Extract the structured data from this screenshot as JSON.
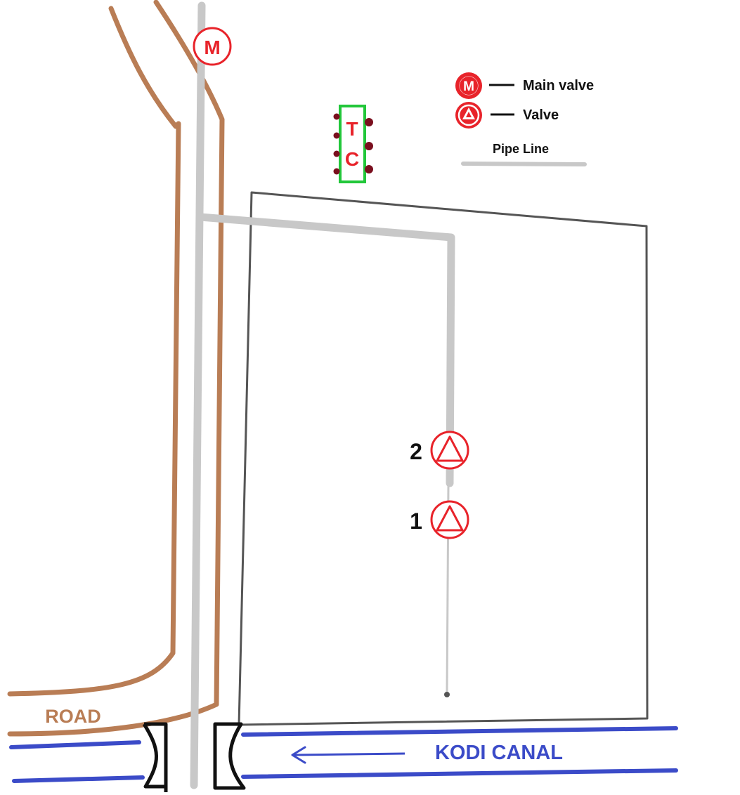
{
  "main_valve": {
    "letter": "M"
  },
  "tc_unit": {
    "top_letter": "T",
    "bottom_letter": "C"
  },
  "legend": {
    "main_valve_letter": "M",
    "main_valve_label": "Main valve",
    "valve_label": "Valve",
    "pipe_line_label": "Pipe Line"
  },
  "valves": [
    {
      "number": "2"
    },
    {
      "number": "1"
    }
  ],
  "road_label": "ROAD",
  "canal_label": "KODI CANAL",
  "colors": {
    "road": "#b97d55",
    "pipe": "#c8c8c8",
    "valve": "#e8232a",
    "canal": "#3b4bc8",
    "tc_box": "#22c73a",
    "tc_dots": "#7a0f1e",
    "field": "#555555",
    "culvert": "#111111"
  }
}
